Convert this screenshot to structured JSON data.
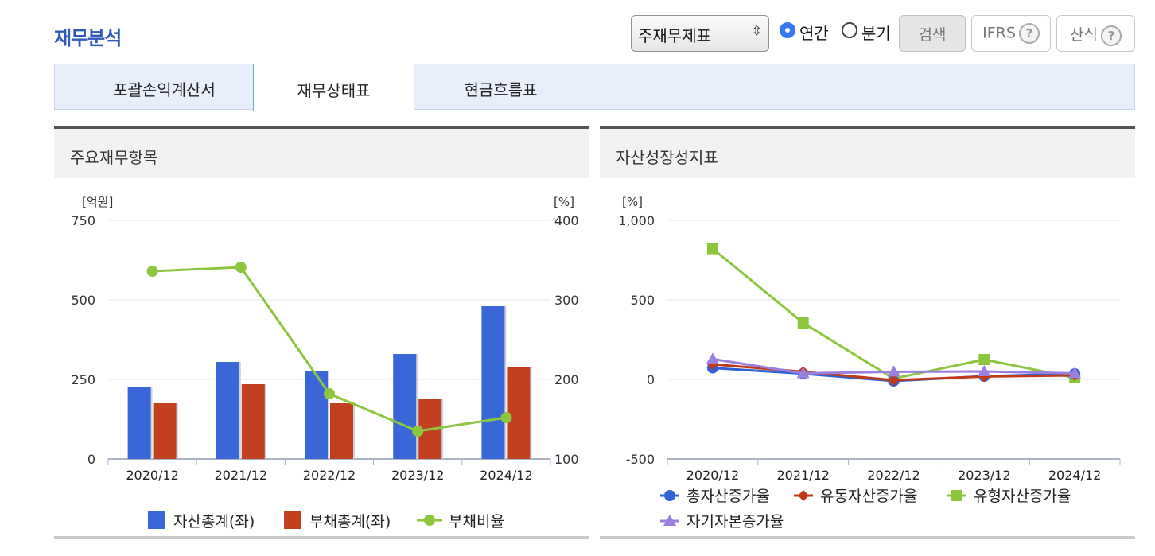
{
  "page_title": "재무분석",
  "controls": {
    "statement_select": "주재무제표",
    "radio_annual": "연간",
    "radio_quarter": "분기",
    "search_button": "검색",
    "ifrs_button": "IFRS",
    "formula_button": "산식",
    "help_mark": "?"
  },
  "tabs": [
    "포괄손익계산서",
    "재무상태표",
    "현금흐름표"
  ],
  "active_tab": "재무상태표",
  "panels": {
    "left_title": "주요재무항목",
    "right_title": "자산성장성지표"
  },
  "colors": {
    "assets": "#3a67d8",
    "liabilities": "#c0401f",
    "debt_ratio": "#8cc63f",
    "total_asset_growth": "#2f62d6",
    "current_asset_growth": "#c03a1a",
    "tangible_asset_growth": "#8cc63f",
    "equity_growth": "#9b7fe0"
  },
  "chart_data": [
    {
      "type": "bar",
      "left_unit": "[억원]",
      "right_unit": "[%]",
      "categories": [
        "2020/12",
        "2021/12",
        "2022/12",
        "2023/12",
        "2024/12"
      ],
      "left_ylim": [
        0,
        750
      ],
      "left_ticks": [
        "0",
        "250",
        "500",
        "750"
      ],
      "right_ylim": [
        100,
        400
      ],
      "right_ticks": [
        "100",
        "200",
        "300",
        "400"
      ],
      "grid": true,
      "legend_position": "bottom",
      "series": [
        {
          "name": "자산총계(좌)",
          "type": "bar",
          "axis": "left",
          "values": [
            225,
            305,
            275,
            330,
            480
          ]
        },
        {
          "name": "부채총계(좌)",
          "type": "bar",
          "axis": "left",
          "values": [
            175,
            235,
            175,
            190,
            290
          ]
        },
        {
          "name": "부채비율",
          "type": "line",
          "axis": "right",
          "values": [
            336,
            341,
            182,
            135,
            152
          ]
        }
      ]
    },
    {
      "type": "line",
      "y_unit": "[%]",
      "categories": [
        "2020/12",
        "2021/12",
        "2022/12",
        "2023/12",
        "2024/12"
      ],
      "ylim": [
        -500,
        1000
      ],
      "y_ticks": [
        "-500",
        "0",
        "500",
        "1,000"
      ],
      "grid": true,
      "legend_position": "bottom",
      "series": [
        {
          "name": "총자산증가율",
          "marker": "circle",
          "values": [
            72,
            36,
            -10,
            20,
            35
          ]
        },
        {
          "name": "유동자산증가율",
          "marker": "diamond",
          "values": [
            95,
            48,
            -5,
            18,
            25
          ]
        },
        {
          "name": "유형자산증가율",
          "marker": "square",
          "values": [
            822,
            355,
            5,
            125,
            10
          ]
        },
        {
          "name": "자기자본증가율",
          "marker": "triangle",
          "values": [
            128,
            38,
            48,
            50,
            38
          ]
        }
      ]
    }
  ]
}
